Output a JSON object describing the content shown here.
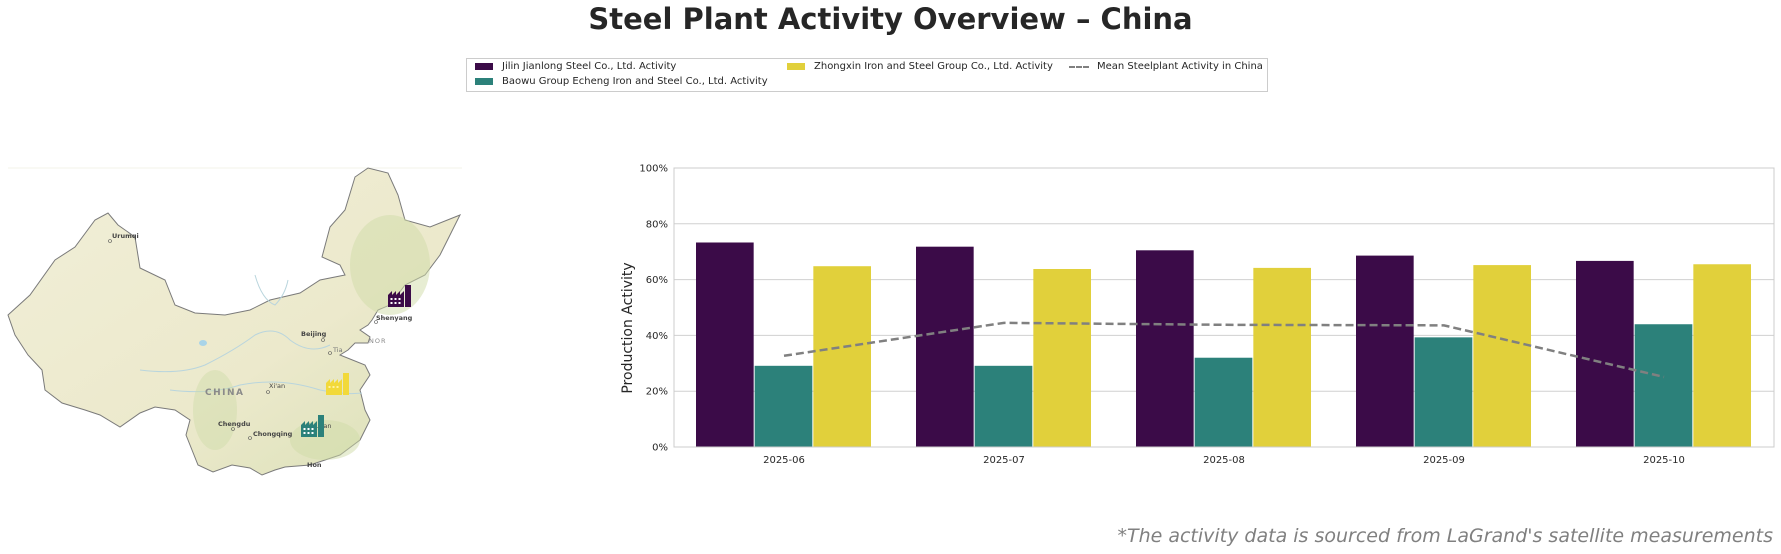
{
  "title": "Steel Plant Activity Overview – China",
  "legend": {
    "items": [
      {
        "label": "Jilin Jianlong Steel Co., Ltd. Activity",
        "color": "#3b0b48",
        "type": "bar"
      },
      {
        "label": "Baowu Group Echeng Iron and Steel Co., Ltd. Activity",
        "color": "#2c817a",
        "type": "bar"
      },
      {
        "label": "Zhongxin Iron and Steel Group Co., Ltd. Activity",
        "color": "#e1d03b",
        "type": "bar"
      },
      {
        "label": "Mean Steelplant Activity in China",
        "color": "#808080",
        "type": "dashed-line"
      }
    ]
  },
  "map": {
    "country_label": "CHINA",
    "cities": [
      "Urumqi",
      "Beijing",
      "Shenyang",
      "Xi'an",
      "Chengdu",
      "Chongqing",
      "Wuhan",
      "Tia",
      "Hon"
    ],
    "region_labels": [
      "NOR"
    ],
    "plant_markers": [
      {
        "name": "Jilin Jianlong Steel Co., Ltd.",
        "icon": "factory-icon",
        "color": "#3b0b48",
        "near": "Shenyang"
      },
      {
        "name": "Zhongxin Iron and Steel Group Co., Ltd.",
        "icon": "factory-icon",
        "color": "#f2d93a",
        "near": "East of Xi'an"
      },
      {
        "name": "Baowu Group Echeng Iron and Steel Co., Ltd.",
        "icon": "factory-icon",
        "color": "#2c817a",
        "near": "Wuhan"
      }
    ]
  },
  "chart_data": {
    "type": "bar",
    "title": "",
    "xlabel": "",
    "ylabel": "Production Activity",
    "ylim": [
      0,
      100
    ],
    "yticks": [
      "0%",
      "20%",
      "40%",
      "60%",
      "80%",
      "100%"
    ],
    "grid": true,
    "categories": [
      "2025-06",
      "2025-07",
      "2025-08",
      "2025-09",
      "2025-10"
    ],
    "series": [
      {
        "name": "Jilin Jianlong Steel Co., Ltd. Activity",
        "type": "bar",
        "color": "#3b0b48",
        "values": [
          73.3,
          71.8,
          70.5,
          68.6,
          66.7
        ]
      },
      {
        "name": "Baowu Group Echeng Iron and Steel Co., Ltd. Activity",
        "type": "bar",
        "color": "#2c817a",
        "values": [
          29.1,
          29.1,
          32.0,
          39.3,
          44.0
        ]
      },
      {
        "name": "Zhongxin Iron and Steel Group Co., Ltd. Activity",
        "type": "bar",
        "color": "#e1d03b",
        "values": [
          64.8,
          63.8,
          64.2,
          65.2,
          65.5
        ]
      },
      {
        "name": "Mean Steelplant Activity in China",
        "type": "line",
        "style": "dashed",
        "color": "#808080",
        "values": [
          32.7,
          44.5,
          43.8,
          43.6,
          25.1
        ]
      }
    ],
    "legend_position": "top-center"
  },
  "footnote": "*The activity data is sourced from LaGrand's satellite measurements"
}
